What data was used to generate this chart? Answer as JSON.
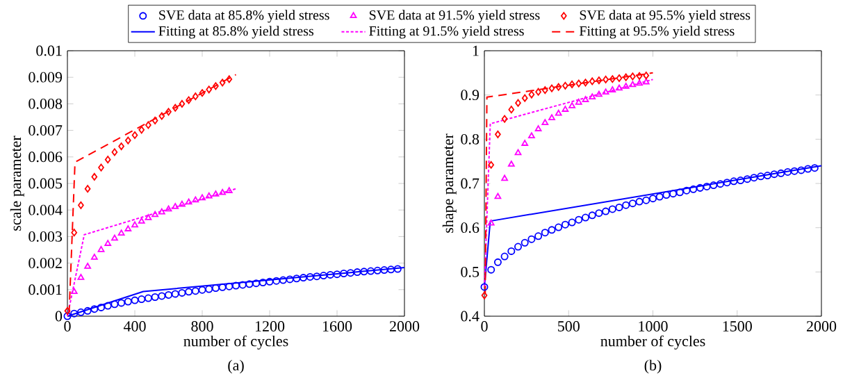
{
  "chart_data": [
    {
      "type": "scatter",
      "xlabel": "number of cycles",
      "ylabel": "scale parameter",
      "annotations": [
        "(a)"
      ],
      "legend": "top",
      "xlim": [
        0,
        2000
      ],
      "xticks": [
        0,
        400,
        800,
        1200,
        1600,
        2000
      ],
      "ylim": [
        0,
        0.01
      ],
      "yticks": [
        0,
        0.001,
        0.002,
        0.003,
        0.004,
        0.005,
        0.006,
        0.007,
        0.008,
        0.009,
        0.01
      ],
      "series": [
        {
          "name": "SVE data at 85.8% yield stress",
          "marker": "circle",
          "color": "#0000ff",
          "x": [
            0,
            40,
            80,
            120,
            160,
            200,
            240,
            280,
            320,
            360,
            400,
            440,
            480,
            520,
            560,
            600,
            640,
            680,
            720,
            760,
            800,
            840,
            880,
            920,
            960,
            1000,
            1040,
            1080,
            1120,
            1160,
            1200,
            1240,
            1280,
            1320,
            1360,
            1400,
            1440,
            1480,
            1520,
            1560,
            1600,
            1640,
            1680,
            1720,
            1760,
            1800,
            1840,
            1880,
            1920,
            1960
          ],
          "values": [
            0,
            0.0001,
            0.00015,
            0.0002,
            0.00027,
            0.00033,
            0.00039,
            0.00045,
            0.0005,
            0.00055,
            0.0006,
            0.00064,
            0.00068,
            0.00072,
            0.00076,
            0.0008,
            0.00084,
            0.00088,
            0.00092,
            0.00095,
            0.00099,
            0.00102,
            0.00106,
            0.00109,
            0.00112,
            0.00115,
            0.00118,
            0.00121,
            0.00124,
            0.00127,
            0.0013,
            0.00133,
            0.00136,
            0.00139,
            0.00142,
            0.00145,
            0.00148,
            0.0015,
            0.00153,
            0.00156,
            0.00158,
            0.00161,
            0.00163,
            0.00166,
            0.00168,
            0.0017,
            0.00172,
            0.00174,
            0.00176,
            0.00178
          ]
        },
        {
          "name": "SVE data at 91.5% yield stress",
          "marker": "triangle",
          "color": "#ff00ff",
          "x": [
            40,
            80,
            120,
            160,
            200,
            240,
            280,
            320,
            360,
            400,
            440,
            480,
            520,
            560,
            600,
            640,
            680,
            720,
            760,
            800,
            840,
            880,
            920,
            960
          ],
          "values": [
            0.00092,
            0.00145,
            0.00187,
            0.00221,
            0.0025,
            0.00273,
            0.00293,
            0.00312,
            0.00328,
            0.00343,
            0.00357,
            0.0037,
            0.00382,
            0.00392,
            0.00403,
            0.00412,
            0.00421,
            0.00429,
            0.00437,
            0.00445,
            0.00452,
            0.00459,
            0.00465,
            0.00472
          ]
        },
        {
          "name": "SVE data at 95.5% yield stress",
          "marker": "diamond",
          "color": "#ff0000",
          "x": [
            0,
            40,
            80,
            120,
            160,
            200,
            240,
            280,
            320,
            360,
            400,
            440,
            480,
            520,
            560,
            600,
            640,
            680,
            720,
            760,
            800,
            840,
            880,
            920,
            960
          ],
          "values": [
            0.0002,
            0.00315,
            0.00418,
            0.0048,
            0.00525,
            0.0056,
            0.0059,
            0.00618,
            0.0064,
            0.00662,
            0.00682,
            0.00702,
            0.0072,
            0.00737,
            0.00754,
            0.0077,
            0.00785,
            0.008,
            0.00814,
            0.00828,
            0.00841,
            0.00854,
            0.00867,
            0.0088,
            0.00893
          ]
        },
        {
          "name": "Fitting at 85.8% yield stress",
          "type": "line",
          "marker": "none",
          "line_style": "solid",
          "color": "#0000ff",
          "x": [
            0,
            450,
            2000
          ],
          "values": [
            0,
            0.00093,
            0.00183
          ]
        },
        {
          "name": "Fitting at 91.5% yield stress",
          "type": "line",
          "marker": "none",
          "line_style": "dotted",
          "color": "#ff00ff",
          "x": [
            0,
            100,
            1000
          ],
          "values": [
            0,
            0.00307,
            0.0048
          ]
        },
        {
          "name": "Fitting at 95.5% yield stress",
          "type": "line",
          "marker": "none",
          "line_style": "dashed",
          "color": "#ff0000",
          "x": [
            10,
            45,
            1000
          ],
          "values": [
            0.0001,
            0.0058,
            0.0091
          ]
        }
      ]
    },
    {
      "type": "scatter",
      "xlabel": "number of cycles",
      "ylabel": "shape parameter",
      "annotations": [
        "(b)"
      ],
      "xlim": [
        0,
        2000
      ],
      "xticks": [
        0,
        500,
        1000,
        1500,
        2000
      ],
      "ylim": [
        0.4,
        1
      ],
      "yticks": [
        0.4,
        0.5,
        0.6,
        0.7,
        0.8,
        0.9,
        1
      ],
      "series": [
        {
          "marker": "circle",
          "color": "#0000ff",
          "x": [
            0,
            40,
            80,
            120,
            160,
            200,
            240,
            280,
            320,
            360,
            400,
            440,
            480,
            520,
            560,
            600,
            640,
            680,
            720,
            760,
            800,
            840,
            880,
            920,
            960,
            1000,
            1040,
            1080,
            1120,
            1160,
            1200,
            1240,
            1280,
            1320,
            1360,
            1400,
            1440,
            1480,
            1520,
            1560,
            1600,
            1640,
            1680,
            1720,
            1760,
            1800,
            1840,
            1880,
            1920,
            1960
          ],
          "values": [
            0.466,
            0.505,
            0.522,
            0.535,
            0.547,
            0.557,
            0.566,
            0.574,
            0.581,
            0.589,
            0.595,
            0.601,
            0.607,
            0.612,
            0.618,
            0.623,
            0.628,
            0.633,
            0.637,
            0.642,
            0.646,
            0.651,
            0.655,
            0.659,
            0.662,
            0.666,
            0.67,
            0.674,
            0.677,
            0.68,
            0.684,
            0.687,
            0.69,
            0.693,
            0.696,
            0.699,
            0.702,
            0.705,
            0.707,
            0.71,
            0.713,
            0.716,
            0.718,
            0.721,
            0.723,
            0.726,
            0.728,
            0.73,
            0.733,
            0.735
          ]
        },
        {
          "marker": "triangle",
          "color": "#ff00ff",
          "x": [
            40,
            80,
            120,
            160,
            200,
            240,
            280,
            320,
            360,
            400,
            440,
            480,
            520,
            560,
            600,
            640,
            680,
            720,
            760,
            800,
            840,
            880,
            920,
            960
          ],
          "values": [
            0.61,
            0.67,
            0.711,
            0.743,
            0.769,
            0.79,
            0.807,
            0.823,
            0.837,
            0.848,
            0.858,
            0.867,
            0.875,
            0.883,
            0.889,
            0.895,
            0.901,
            0.906,
            0.911,
            0.915,
            0.919,
            0.923,
            0.926,
            0.929
          ]
        },
        {
          "marker": "diamond",
          "color": "#ff0000",
          "x": [
            0,
            40,
            80,
            120,
            160,
            200,
            240,
            280,
            320,
            360,
            400,
            440,
            480,
            520,
            560,
            600,
            640,
            680,
            720,
            760,
            800,
            840,
            880,
            920,
            960
          ],
          "values": [
            0.447,
            0.742,
            0.811,
            0.846,
            0.867,
            0.882,
            0.893,
            0.901,
            0.907,
            0.911,
            0.915,
            0.918,
            0.921,
            0.924,
            0.926,
            0.928,
            0.931,
            0.933,
            0.935,
            0.936,
            0.938,
            0.94,
            0.942,
            0.943,
            0.944
          ]
        },
        {
          "type": "line",
          "marker": "none",
          "line_style": "solid",
          "color": "#0000ff",
          "x": [
            0,
            35,
            2000
          ],
          "values": [
            0.466,
            0.615,
            0.74
          ]
        },
        {
          "type": "line",
          "marker": "none",
          "line_style": "dotted",
          "color": "#ff00ff",
          "x": [
            0,
            35,
            1000
          ],
          "values": [
            0.466,
            0.835,
            0.935
          ]
        },
        {
          "type": "line",
          "marker": "none",
          "line_style": "dashed",
          "color": "#ff0000",
          "x": [
            5,
            15,
            1000
          ],
          "values": [
            0.45,
            0.895,
            0.95
          ]
        }
      ]
    }
  ]
}
